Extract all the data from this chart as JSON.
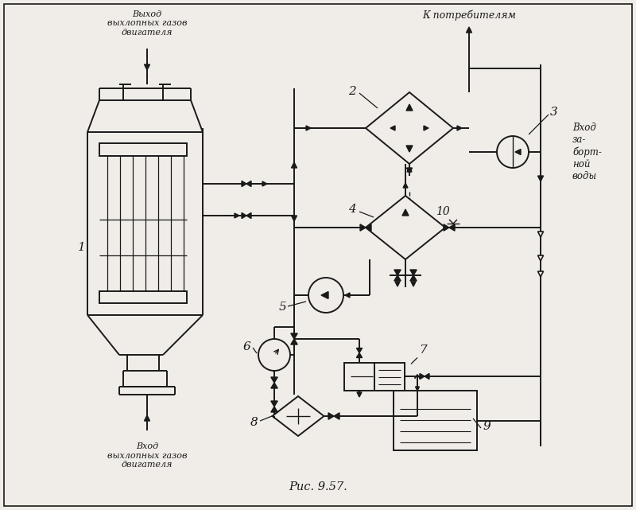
{
  "title": "Рис. 9.57.",
  "bg": "#f0ede8",
  "lc": "#1a1a1a",
  "fig_w": 8.0,
  "fig_h": 6.41,
  "labels": {
    "top_exhaust": "Выход\nвыхлопных газов\nдвигателя",
    "bot_exhaust": "Вход\nвыхлопных газов\nдвигателя",
    "consumers": "К потребителям",
    "seawater": "Вход\nза-\nборт-\nной\nводы"
  },
  "numbers": {
    "1": "1",
    "2": "2",
    "3": "3",
    "4": "4",
    "5": "5",
    "6": "6",
    "7": "7",
    "8": "8",
    "9": "9",
    "10": "10"
  }
}
